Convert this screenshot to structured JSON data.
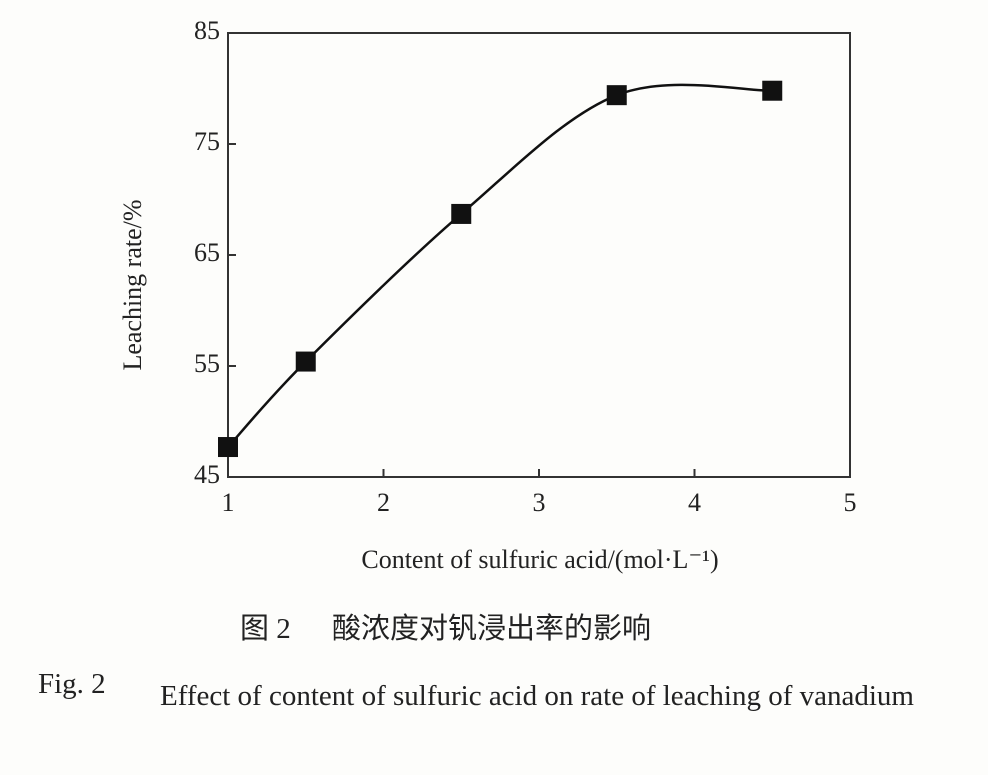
{
  "chart_data": {
    "type": "line",
    "x": [
      1,
      1.5,
      2.5,
      3.5,
      4.5
    ],
    "series": [
      {
        "color": "#111111",
        "values": [
          47.7,
          55.4,
          68.7,
          79.4,
          79.8
        ]
      }
    ],
    "xlim": [
      1,
      5
    ],
    "xticks": [
      1,
      2,
      3,
      4,
      5
    ],
    "ylim": [
      45,
      85
    ],
    "yticks": [
      45,
      55,
      65,
      75,
      85
    ],
    "xlabel": "Content of sulfuric acid/(mol·L⁻¹)",
    "ylabel": "Leaching rate/%",
    "caption_cn_label": "图 2",
    "caption_cn": "酸浓度对钒浸出率的影响",
    "caption_en_label": "Fig. 2",
    "caption_en": "Effect of content of sulfuric acid on rate of leaching of vanadium"
  }
}
